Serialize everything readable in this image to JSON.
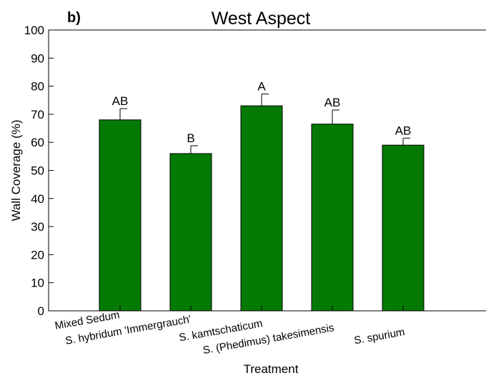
{
  "panel_label": "b)",
  "chart_data": {
    "type": "bar",
    "title": "West Aspect",
    "xlabel": "Treatment",
    "ylabel": "Wall Coverage (%)",
    "ylim": [
      0,
      100
    ],
    "yticks": [
      0,
      10,
      20,
      30,
      40,
      50,
      60,
      70,
      80,
      90,
      100
    ],
    "categories": [
      "Mixed Sedum",
      "S. hybridum 'Immergrauch'",
      "S. kamtschaticum",
      "S. (Phedimus) takesimensis",
      "S. spurium"
    ],
    "values": [
      68,
      56,
      73,
      66.5,
      59
    ],
    "errors": [
      4,
      2.8,
      4.2,
      5,
      2.5
    ],
    "letters": [
      "AB",
      "B",
      "A",
      "AB",
      "AB"
    ],
    "bar_color": "#047A04",
    "grid": false,
    "legend": "none"
  }
}
